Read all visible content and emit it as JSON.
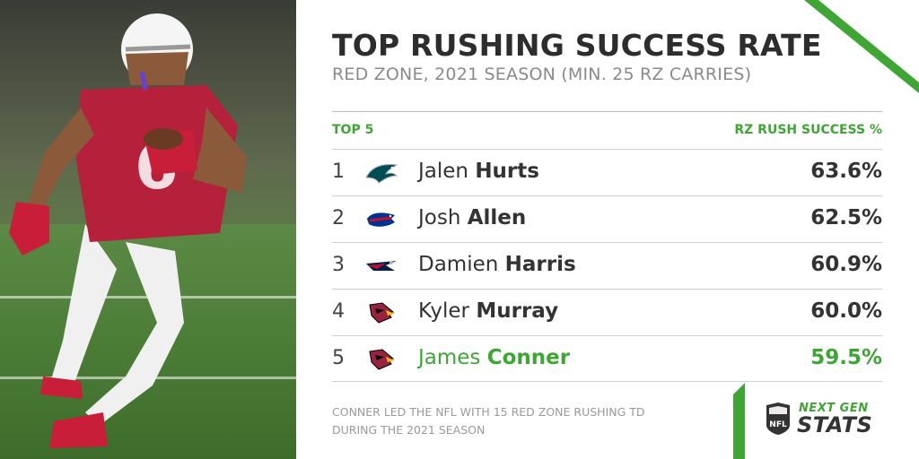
{
  "title": "TOP RUSHING SUCCESS RATE",
  "subtitle": "RED ZONE, 2021 SEASON (MIN. 25 RZ CARRIES)",
  "table": {
    "header_left": "TOP 5",
    "header_right": "RZ RUSH SUCCESS %",
    "rows": [
      {
        "rank": "1",
        "first": "Jalen",
        "last": "Hurts",
        "pct": "63.6%",
        "logo": "eagles-logo-icon"
      },
      {
        "rank": "2",
        "first": "Josh",
        "last": "Allen",
        "pct": "62.5%",
        "logo": "bills-logo-icon"
      },
      {
        "rank": "3",
        "first": "Damien",
        "last": "Harris",
        "pct": "60.9%",
        "logo": "patriots-logo-icon"
      },
      {
        "rank": "4",
        "first": "Kyler",
        "last": "Murray",
        "pct": "60.0%",
        "logo": "cardinals-logo-icon"
      },
      {
        "rank": "5",
        "first": "James",
        "last": "Conner",
        "pct": "59.5%",
        "logo": "cardinals-logo-icon"
      }
    ]
  },
  "footnote": "CONNER LED THE NFL WITH 15 RED ZONE RUSHING TD DURING THE 2021 SEASON",
  "brand": {
    "next_gen": "NEXT GEN",
    "stats": "STATS",
    "shield": "NFL"
  },
  "colors": {
    "accent": "#3fa535",
    "jersey_red": "#b5203a"
  },
  "player_photo": {
    "jersey_number": "6"
  }
}
